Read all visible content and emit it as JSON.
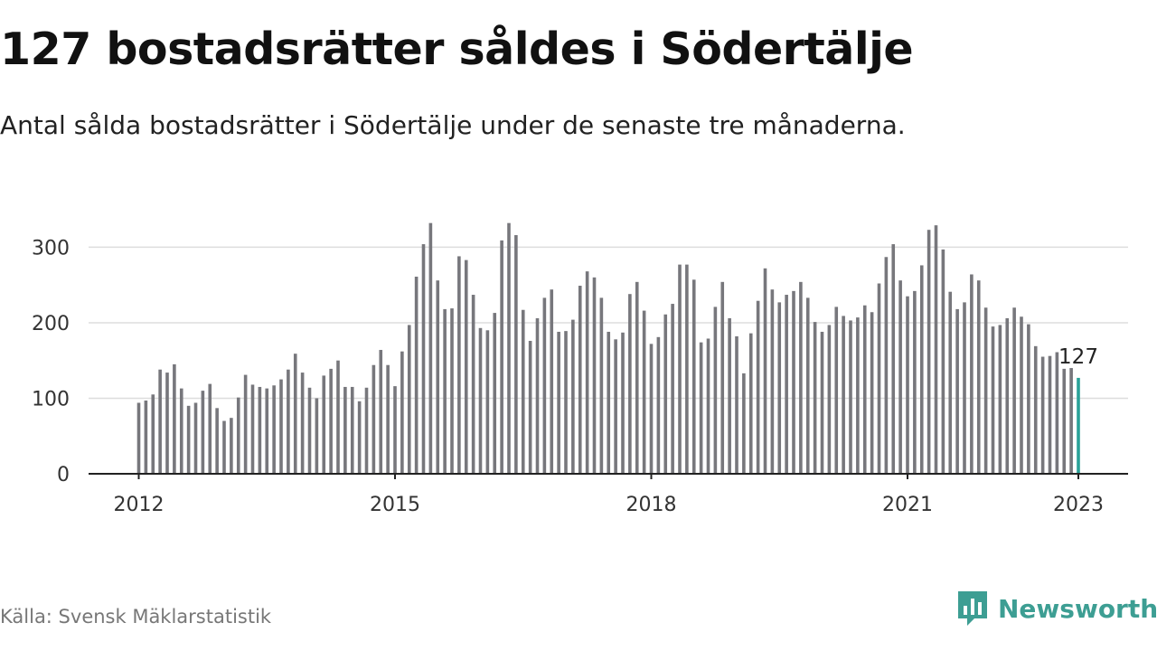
{
  "header": {
    "title": "127 bostadsrätter såldes i Södertälje",
    "subtitle": "Antal sålda bostadsrätter i Södertälje under de senaste tre månaderna."
  },
  "footer": {
    "source": "Källa: Svensk Mäklarstatistik",
    "brand": "Newsworthy",
    "brand_icon": "newsworthy-chart-logo-icon"
  },
  "colors": {
    "bar": "#77777c",
    "highlight": "#2aa198",
    "grid": "#dddddd",
    "axis": "#222222",
    "brand": "#3d9e93"
  },
  "chart_data": {
    "type": "bar",
    "title": "",
    "xlabel": "",
    "ylabel": "",
    "ylim": [
      0,
      340
    ],
    "yticks": [
      0,
      100,
      200,
      300
    ],
    "ytick_labels": [
      "0",
      "100",
      "200",
      "300"
    ],
    "xticks": [
      "2012",
      "2015",
      "2018",
      "2021",
      "2023"
    ],
    "grid": true,
    "highlight_last": true,
    "last_label": "127",
    "values": [
      94,
      97,
      105,
      138,
      134,
      145,
      113,
      90,
      94,
      110,
      119,
      87,
      70,
      74,
      101,
      131,
      118,
      115,
      113,
      117,
      125,
      138,
      159,
      134,
      114,
      100,
      130,
      139,
      150,
      115,
      115,
      96,
      114,
      144,
      164,
      144,
      116,
      162,
      197,
      261,
      304,
      332,
      256,
      218,
      219,
      288,
      283,
      237,
      193,
      190,
      213,
      309,
      332,
      316,
      217,
      176,
      206,
      233,
      244,
      188,
      189,
      204,
      249,
      268,
      260,
      233,
      188,
      178,
      187,
      238,
      254,
      216,
      172,
      181,
      211,
      225,
      277,
      277,
      257,
      174,
      179,
      221,
      254,
      206,
      182,
      133,
      186,
      229,
      272,
      244,
      227,
      237,
      242,
      254,
      233,
      201,
      188,
      197,
      221,
      209,
      203,
      207,
      223,
      214,
      252,
      287,
      304,
      256,
      235,
      242,
      276,
      323,
      329,
      297,
      241,
      218,
      227,
      264,
      256,
      220,
      195,
      197,
      206,
      220,
      208,
      198,
      169,
      155,
      156,
      161,
      139,
      140,
      127
    ]
  }
}
